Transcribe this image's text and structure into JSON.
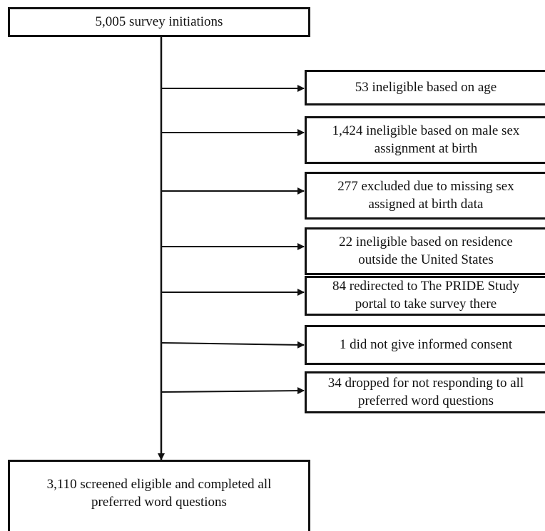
{
  "flowchart": {
    "top": {
      "label": "5,005 survey initiations"
    },
    "exclusions": [
      {
        "label": "53 ineligible based on age"
      },
      {
        "label": "1,424 ineligible based on male sex\nassignment at birth"
      },
      {
        "label": "277 excluded due to missing sex\nassigned at birth data"
      },
      {
        "label": "22 ineligible based on residence\noutside the United States"
      },
      {
        "label": "84 redirected to The PRIDE Study\nportal to take survey there"
      },
      {
        "label": "1 did not give informed consent"
      },
      {
        "label": "34 dropped for not responding to all\npreferred word questions"
      }
    ],
    "bottom": {
      "label": "3,110 screened eligible and completed all\npreferred word questions"
    }
  }
}
